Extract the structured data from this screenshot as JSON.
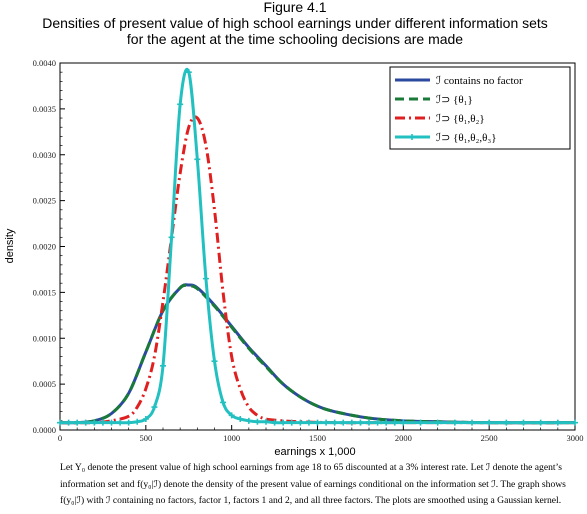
{
  "figure": {
    "label": "Figure 4.1",
    "subtitle_line1": "Densities of present value of high school earnings under different information sets",
    "subtitle_line2": "for the agent at the time schooling decisions are made",
    "caption": "Let Y₀ denote the present value of high school earnings from age 18 to 65 discounted at a 3% interest rate. Let ℐ denote the agent’s information set and f(y₀|ℐ) denote the density of the present value of earnings conditional on the information set ℐ. The graph shows f(y₀|ℐ) with ℐ containing no factors, factor 1, factors 1 and 2, and all three factors. The plots are smoothed using a Gaussian kernel."
  },
  "chart_data": {
    "type": "line",
    "xlabel": "earnings x 1,000",
    "ylabel": "density",
    "xlim": [
      0,
      3000
    ],
    "ylim": [
      0,
      0.004
    ],
    "xticks": [
      0,
      500,
      1000,
      1500,
      2000,
      2500,
      3000
    ],
    "yticks": [
      "0.0000",
      "0.0005",
      "0.0010",
      "0.0015",
      "0.0020",
      "0.0025",
      "0.0030",
      "0.0035",
      "0.0040"
    ],
    "legend_position": "top-right",
    "series": [
      {
        "name": "ℐ contains no factor",
        "color": "#2b4a9e",
        "style": "solid",
        "x": [
          0,
          100,
          200,
          300,
          400,
          500,
          600,
          700,
          750,
          800,
          900,
          1000,
          1100,
          1200,
          1300,
          1400,
          1500,
          1600,
          1800,
          2000,
          2200,
          2500,
          3000
        ],
        "y": [
          8e-05,
          8e-05,
          0.0001,
          0.00018,
          0.0004,
          0.00085,
          0.0013,
          0.00155,
          0.00158,
          0.00155,
          0.00136,
          0.00113,
          0.0009,
          0.0007,
          0.0005,
          0.00036,
          0.00026,
          0.0002,
          0.00013,
          0.0001,
          9e-05,
          8e-05,
          8e-05
        ]
      },
      {
        "name": "ℐ⊃ {θ₁}",
        "color": "#1a7a3a",
        "style": "dashed",
        "x": [
          0,
          100,
          200,
          300,
          400,
          500,
          600,
          700,
          750,
          800,
          900,
          1000,
          1100,
          1200,
          1300,
          1400,
          1500,
          1600,
          1800,
          2000,
          2200,
          2500,
          3000
        ],
        "y": [
          8e-05,
          8e-05,
          0.0001,
          0.00018,
          0.0004,
          0.00085,
          0.0013,
          0.00155,
          0.00157,
          0.00154,
          0.00135,
          0.00112,
          0.00089,
          0.00069,
          0.0005,
          0.00036,
          0.00026,
          0.0002,
          0.00013,
          0.0001,
          9e-05,
          8e-05,
          8e-05
        ]
      },
      {
        "name": "ℐ⊃ {θ₁,θ₂}",
        "color": "#e02020",
        "style": "dashdot",
        "x": [
          0,
          200,
          300,
          400,
          450,
          500,
          550,
          600,
          650,
          700,
          750,
          800,
          850,
          900,
          950,
          1000,
          1050,
          1100,
          1150,
          1200,
          1300,
          1400,
          1600,
          2000,
          3000
        ],
        "y": [
          8e-05,
          8e-05,
          0.0001,
          0.00015,
          0.00025,
          0.00045,
          0.0008,
          0.0014,
          0.0021,
          0.0028,
          0.0033,
          0.0034,
          0.0031,
          0.0024,
          0.0015,
          0.0008,
          0.00045,
          0.00025,
          0.00016,
          0.00012,
          0.0001,
          9e-05,
          8e-05,
          8e-05,
          8e-05
        ]
      },
      {
        "name": "ℐ⊃ {θ₁,θ₂,θ₃}",
        "color": "#22c0c0",
        "style": "solid-markers",
        "x": [
          0,
          50,
          100,
          150,
          200,
          250,
          300,
          350,
          400,
          450,
          500,
          550,
          600,
          650,
          700,
          750,
          800,
          850,
          900,
          950,
          1000,
          1050,
          1100,
          1150,
          1200,
          1250,
          1300,
          1350,
          1400,
          1450,
          1500,
          1550,
          1600,
          1650,
          1700,
          1750,
          1800,
          1850,
          1900,
          1950,
          2000,
          2100,
          2200,
          2300,
          2400,
          2500,
          2600,
          2700,
          2800,
          2900,
          3000
        ],
        "y": [
          8e-05,
          8e-05,
          8e-05,
          8e-05,
          8e-05,
          8e-05,
          8e-05,
          8e-05,
          8e-05,
          9e-05,
          0.00012,
          0.00025,
          0.0007,
          0.0021,
          0.00355,
          0.0039,
          0.00295,
          0.00165,
          0.00075,
          0.0003,
          0.00016,
          0.00012,
          0.0001,
          9e-05,
          9e-05,
          8e-05,
          8e-05,
          8e-05,
          8e-05,
          8e-05,
          8e-05,
          8e-05,
          8e-05,
          8e-05,
          8e-05,
          8e-05,
          8e-05,
          8e-05,
          8e-05,
          8e-05,
          8e-05,
          8e-05,
          8e-05,
          8e-05,
          8e-05,
          8e-05,
          8e-05,
          8e-05,
          8e-05,
          8e-05,
          8e-05
        ]
      }
    ]
  }
}
